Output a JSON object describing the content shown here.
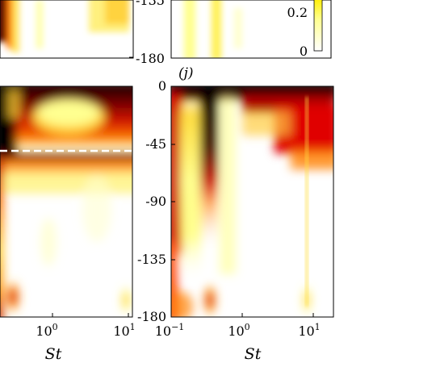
{
  "chart_data": [
    {
      "type": "heatmap",
      "panel": "top-left (partial)",
      "y_ticks": [
        "-135",
        "-180"
      ],
      "note": "cropped panel, only lower part visible"
    },
    {
      "type": "heatmap",
      "panel": "top-right (partial)",
      "colorbar": {
        "ticks": [
          "0.2",
          "0"
        ],
        "colormap": [
          "#ffffff",
          "#ffff80",
          "#ffd000",
          "#ff7000",
          "#e00000",
          "#700000",
          "#000000"
        ]
      }
    },
    {
      "type": "heatmap",
      "panel": "bottom-left (partial)",
      "xlabel": "St",
      "x_ticks": [
        {
          "base": "10",
          "exp": "0"
        },
        {
          "base": "10",
          "exp": "1"
        }
      ],
      "dashed_line_y": -45,
      "ylim": [
        -180,
        0
      ]
    },
    {
      "type": "heatmap",
      "panel": "(j)",
      "title": "(j)",
      "xlabel": "St",
      "xscale": "log",
      "xlim": [
        0.1,
        20
      ],
      "x_ticks": [
        {
          "base": "10",
          "exp": "−1"
        },
        {
          "base": "10",
          "exp": "0"
        },
        {
          "base": "10",
          "exp": "1"
        }
      ],
      "ylim": [
        -180,
        0
      ],
      "y_ticks": [
        "0",
        "-45",
        "-90",
        "-135",
        "-180"
      ]
    }
  ]
}
